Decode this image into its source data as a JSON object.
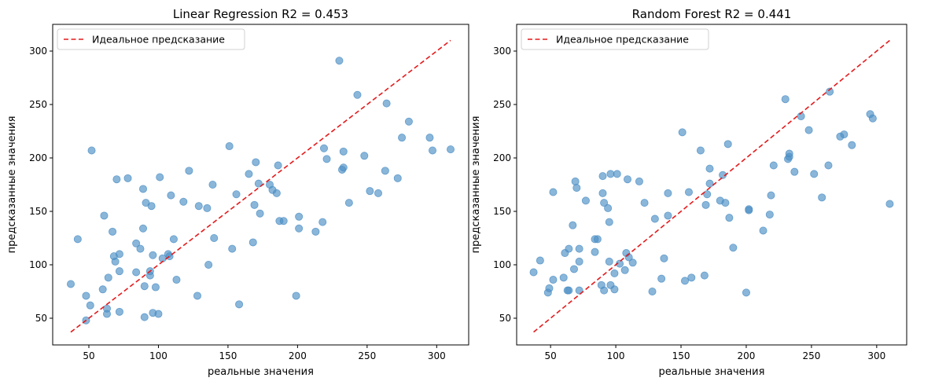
{
  "chart_data": [
    {
      "type": "scatter",
      "title": "Linear Regression R2 = 0.453",
      "xlabel": "реальные значения",
      "ylabel": "предсказанные значения",
      "xlim": [
        24,
        323
      ],
      "ylim": [
        25,
        325
      ],
      "xticks": [
        50,
        100,
        150,
        200,
        250,
        300
      ],
      "yticks": [
        50,
        100,
        150,
        200,
        250,
        300
      ],
      "legend": {
        "placement": "top-left",
        "entries": [
          {
            "label": "Идеальное предсказание",
            "style": "dashed-line",
            "color": "#e41a1c"
          }
        ]
      },
      "ideal_line": {
        "x": [
          37,
          310
        ],
        "y": [
          37,
          310
        ],
        "color": "#e41a1c"
      },
      "point_color": "#4c8fc4",
      "points": [
        [
          37,
          82
        ],
        [
          42,
          124
        ],
        [
          48,
          71
        ],
        [
          48,
          48
        ],
        [
          51,
          62
        ],
        [
          52,
          207
        ],
        [
          60,
          77
        ],
        [
          61,
          146
        ],
        [
          63,
          59
        ],
        [
          63,
          54
        ],
        [
          64,
          88
        ],
        [
          67,
          131
        ],
        [
          68,
          108
        ],
        [
          69,
          103
        ],
        [
          70,
          180
        ],
        [
          72,
          56
        ],
        [
          72,
          110
        ],
        [
          72,
          94
        ],
        [
          78,
          181
        ],
        [
          84,
          120
        ],
        [
          84,
          93
        ],
        [
          87,
          115
        ],
        [
          89,
          171
        ],
        [
          89,
          134
        ],
        [
          90,
          51
        ],
        [
          90,
          80
        ],
        [
          91,
          158
        ],
        [
          94,
          94
        ],
        [
          94,
          90
        ],
        [
          95,
          155
        ],
        [
          96,
          109
        ],
        [
          96,
          55
        ],
        [
          98,
          79
        ],
        [
          100,
          54
        ],
        [
          101,
          182
        ],
        [
          103,
          106
        ],
        [
          107,
          110
        ],
        [
          108,
          108
        ],
        [
          109,
          165
        ],
        [
          111,
          124
        ],
        [
          113,
          86
        ],
        [
          118,
          159
        ],
        [
          122,
          188
        ],
        [
          128,
          71
        ],
        [
          129,
          155
        ],
        [
          135,
          153
        ],
        [
          136,
          100
        ],
        [
          139,
          175
        ],
        [
          140,
          125
        ],
        [
          151,
          211
        ],
        [
          153,
          115
        ],
        [
          156,
          166
        ],
        [
          158,
          63
        ],
        [
          165,
          185
        ],
        [
          168,
          121
        ],
        [
          169,
          156
        ],
        [
          170,
          196
        ],
        [
          172,
          176
        ],
        [
          173,
          148
        ],
        [
          180,
          175
        ],
        [
          182,
          170
        ],
        [
          185,
          167
        ],
        [
          186,
          193
        ],
        [
          187,
          141
        ],
        [
          190,
          141
        ],
        [
          199,
          71
        ],
        [
          201,
          134
        ],
        [
          201,
          145
        ],
        [
          213,
          131
        ],
        [
          218,
          140
        ],
        [
          219,
          209
        ],
        [
          221,
          199
        ],
        [
          230,
          291
        ],
        [
          232,
          189
        ],
        [
          233,
          191
        ],
        [
          233,
          206
        ],
        [
          237,
          158
        ],
        [
          243,
          259
        ],
        [
          248,
          202
        ],
        [
          252,
          169
        ],
        [
          258,
          167
        ],
        [
          263,
          188
        ],
        [
          264,
          251
        ],
        [
          272,
          181
        ],
        [
          275,
          219
        ],
        [
          280,
          234
        ],
        [
          295,
          219
        ],
        [
          297,
          207
        ],
        [
          310,
          208
        ]
      ]
    },
    {
      "type": "scatter",
      "title": "Random Forest R2 = 0.441",
      "xlabel": "реальные значения",
      "ylabel": "предсказанные значения",
      "xlim": [
        24,
        323
      ],
      "ylim": [
        25,
        325
      ],
      "xticks": [
        50,
        100,
        150,
        200,
        250,
        300
      ],
      "yticks": [
        50,
        100,
        150,
        200,
        250,
        300
      ],
      "legend": {
        "placement": "top-left",
        "entries": [
          {
            "label": "Идеальное предсказание",
            "style": "dashed-line",
            "color": "#e41a1c"
          }
        ]
      },
      "ideal_line": {
        "x": [
          37,
          310
        ],
        "y": [
          37,
          310
        ],
        "color": "#e41a1c"
      },
      "point_color": "#4c8fc4",
      "points": [
        [
          37,
          93
        ],
        [
          42,
          104
        ],
        [
          48,
          74
        ],
        [
          49,
          78
        ],
        [
          52,
          168
        ],
        [
          52,
          86
        ],
        [
          60,
          88
        ],
        [
          61,
          111
        ],
        [
          63,
          76
        ],
        [
          64,
          76
        ],
        [
          64,
          115
        ],
        [
          67,
          137
        ],
        [
          68,
          96
        ],
        [
          69,
          178
        ],
        [
          70,
          172
        ],
        [
          72,
          103
        ],
        [
          72,
          115
        ],
        [
          72,
          76
        ],
        [
          77,
          160
        ],
        [
          84,
          124
        ],
        [
          84,
          112
        ],
        [
          86,
          124
        ],
        [
          89,
          81
        ],
        [
          90,
          167
        ],
        [
          90,
          183
        ],
        [
          91,
          76
        ],
        [
          91,
          158
        ],
        [
          94,
          153
        ],
        [
          95,
          103
        ],
        [
          95,
          140
        ],
        [
          96,
          81
        ],
        [
          96,
          185
        ],
        [
          99,
          77
        ],
        [
          99,
          92
        ],
        [
          101,
          185
        ],
        [
          103,
          101
        ],
        [
          107,
          95
        ],
        [
          108,
          111
        ],
        [
          109,
          180
        ],
        [
          110,
          107
        ],
        [
          113,
          102
        ],
        [
          118,
          178
        ],
        [
          122,
          158
        ],
        [
          128,
          75
        ],
        [
          130,
          143
        ],
        [
          135,
          87
        ],
        [
          137,
          106
        ],
        [
          140,
          146
        ],
        [
          140,
          167
        ],
        [
          151,
          224
        ],
        [
          153,
          85
        ],
        [
          156,
          168
        ],
        [
          158,
          88
        ],
        [
          165,
          207
        ],
        [
          168,
          90
        ],
        [
          169,
          156
        ],
        [
          170,
          166
        ],
        [
          172,
          176
        ],
        [
          172,
          190
        ],
        [
          180,
          160
        ],
        [
          182,
          184
        ],
        [
          184,
          158
        ],
        [
          186,
          213
        ],
        [
          187,
          144
        ],
        [
          190,
          116
        ],
        [
          200,
          74
        ],
        [
          202,
          152
        ],
        [
          202,
          151
        ],
        [
          213,
          132
        ],
        [
          218,
          147
        ],
        [
          219,
          165
        ],
        [
          221,
          193
        ],
        [
          230,
          255
        ],
        [
          232,
          199
        ],
        [
          233,
          201
        ],
        [
          233,
          204
        ],
        [
          237,
          187
        ],
        [
          242,
          239
        ],
        [
          248,
          226
        ],
        [
          252,
          185
        ],
        [
          258,
          163
        ],
        [
          263,
          193
        ],
        [
          264,
          262
        ],
        [
          272,
          220
        ],
        [
          275,
          222
        ],
        [
          281,
          212
        ],
        [
          295,
          241
        ],
        [
          297,
          237
        ],
        [
          310,
          157
        ]
      ]
    }
  ]
}
